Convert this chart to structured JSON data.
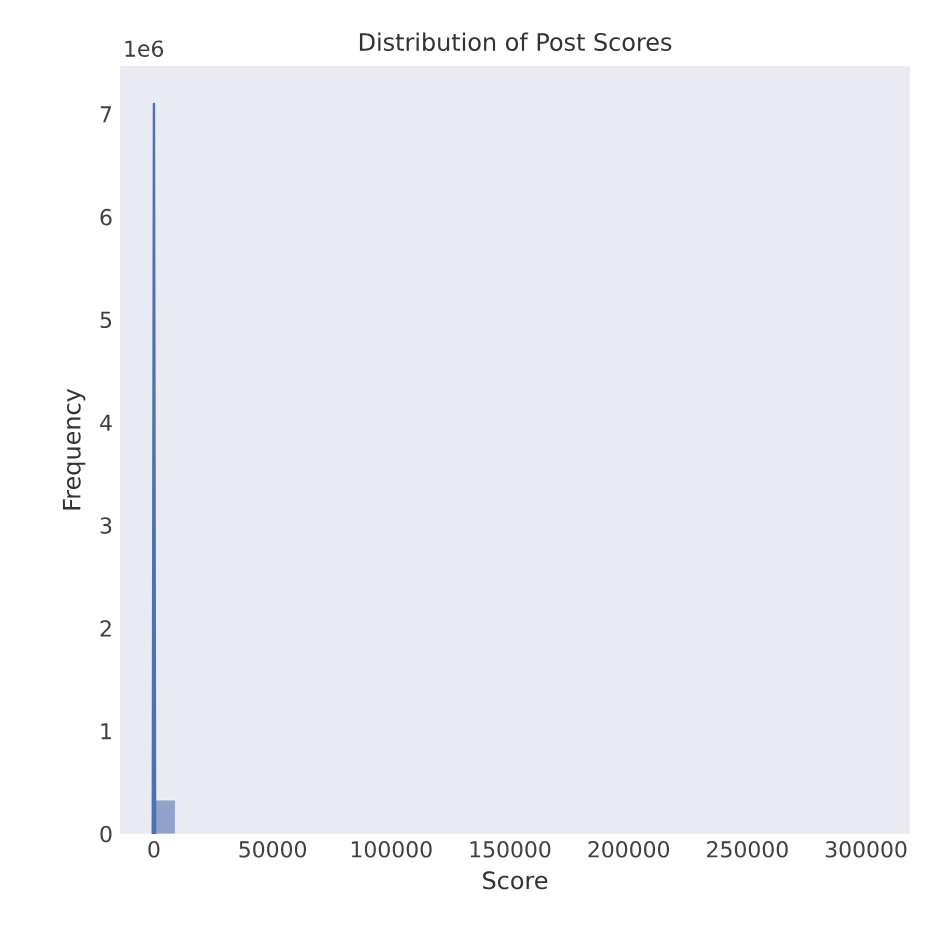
{
  "chart_data": {
    "type": "histogram",
    "title": "Distribution of Post Scores",
    "xlabel": "Score",
    "ylabel": "Frequency",
    "annotations": [
      "1e6"
    ],
    "series": [
      {
        "color": "#8fa3cc",
        "bins": [
          0,
          9000
        ],
        "values": [
          0.33
        ]
      },
      {
        "type": "line",
        "color": "#4c72b0",
        "x": [
          -500,
          0,
          500
        ],
        "values": [
          0,
          7.1,
          0
        ]
      }
    ],
    "xlim": [
      -14300,
      318500
    ],
    "ylim": [
      0,
      7.47
    ],
    "xticks": [
      0,
      50000,
      100000,
      150000,
      200000,
      250000,
      300000
    ],
    "yticks": [
      0,
      1,
      2,
      3,
      4,
      5,
      6,
      7
    ],
    "grid": false
  }
}
